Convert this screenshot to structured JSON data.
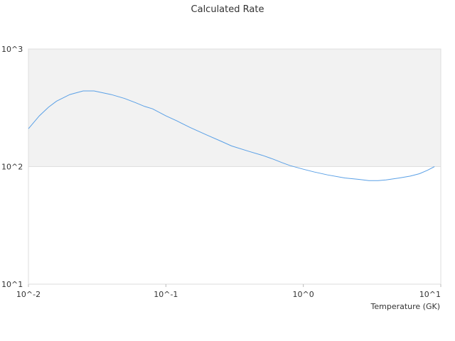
{
  "chart_data": {
    "type": "line",
    "title": "Calculated Rate",
    "xlabel": "Temperature (GK)",
    "ylabel": "",
    "x_scale": "log",
    "y_scale": "log",
    "xlim": [
      0.01,
      10
    ],
    "ylim": [
      10,
      1000
    ],
    "x_tick_labels": [
      "10^-2",
      "10^-1",
      "10^0",
      "10^1"
    ],
    "y_tick_labels": [
      "10^1",
      "10^2",
      "10^3"
    ],
    "x_ticks": [
      0.01,
      0.1,
      1,
      10
    ],
    "y_ticks": [
      10,
      100,
      1000
    ],
    "grid": false,
    "band": {
      "y_from": 100,
      "y_to": 1000,
      "color": "#f2f2f2"
    },
    "colors": {
      "line": "#5aa0e6",
      "plot_border": "#dddddd",
      "band_edge": "#e0e0e0"
    },
    "series": [
      {
        "x": [
          0.01,
          0.012,
          0.014,
          0.016,
          0.02,
          0.025,
          0.03,
          0.04,
          0.05,
          0.06,
          0.07,
          0.08,
          0.1,
          0.12,
          0.15,
          0.2,
          0.25,
          0.3,
          0.4,
          0.5,
          0.6,
          0.7,
          0.8,
          1.0,
          1.2,
          1.5,
          2.0,
          2.5,
          3.0,
          3.5,
          4.0,
          5.0,
          6.0,
          7.0,
          8.0,
          9.0
        ],
        "y": [
          210,
          270,
          320,
          360,
          410,
          440,
          440,
          410,
          380,
          350,
          325,
          310,
          270,
          245,
          215,
          185,
          165,
          150,
          135,
          125,
          116,
          108,
          102,
          95,
          90,
          85,
          80,
          78,
          76,
          76,
          77,
          80,
          83,
          87,
          93,
          100
        ]
      }
    ]
  }
}
